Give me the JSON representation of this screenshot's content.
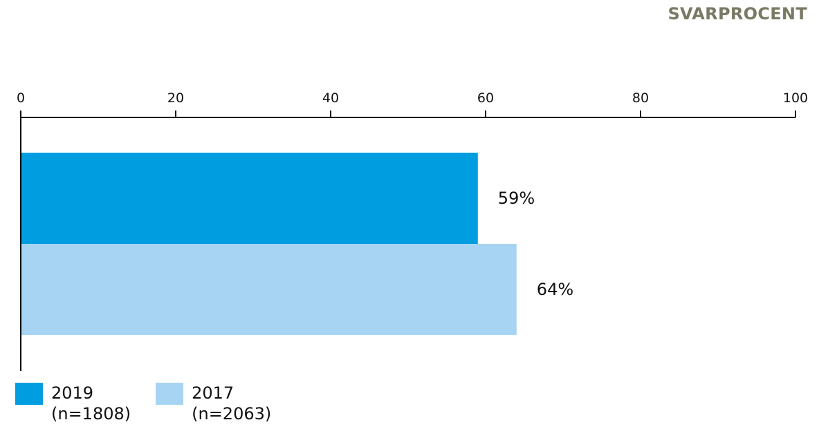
{
  "title": "SVARPROCENT",
  "colors": {
    "title": "#7a7a64",
    "series_2019": "#009ee0",
    "series_2017": "#a8d4f3",
    "axis": "#000000",
    "text": "#111111"
  },
  "legend": [
    {
      "year": "2019",
      "n": "(n=1808)"
    },
    {
      "year": "2017",
      "n": "(n=2063)"
    }
  ],
  "chart_data": {
    "type": "bar",
    "orientation": "horizontal",
    "title": "SVARPROCENT",
    "xlim": [
      0,
      100
    ],
    "xticks": [
      0,
      20,
      40,
      60,
      80,
      100
    ],
    "axis_position": "top",
    "grid": false,
    "legend_placement": "bottom-left",
    "series": [
      {
        "name": "2019 (n=1808)",
        "values": [
          59
        ],
        "labels": [
          "59%"
        ]
      },
      {
        "name": "2017 (n=2063)",
        "values": [
          64
        ],
        "labels": [
          "64%"
        ]
      }
    ]
  }
}
